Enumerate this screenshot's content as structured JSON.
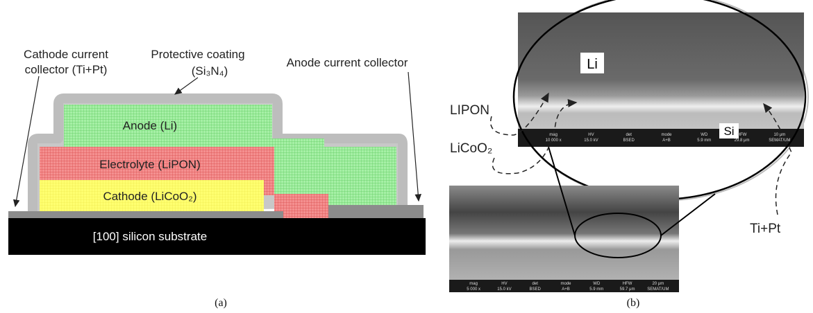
{
  "figure_a": {
    "cathode_collector": [
      "Cathode current",
      "collector (Ti+Pt)"
    ],
    "coating": [
      "Protective coating",
      "(Si₃N₄)"
    ],
    "anode_collector": "Anode current collector",
    "anode": "Anode (Li)",
    "electrolyte": "Electrolyte (LiPON)",
    "cathode": "Cathode (LiCoO₂)",
    "substrate": "[100] silicon substrate",
    "caption": "(a)"
  },
  "figure_b": {
    "li": "Li",
    "lipon": "LIPON",
    "licoo2": "LiCoO₂",
    "si": "Si",
    "tipt": "Ti+Pt",
    "top_bar": [
      [
        "mag",
        "HV",
        "det",
        "mode",
        "WD",
        "HFW",
        "10 μm"
      ],
      [
        "10 000 x",
        "15.0 kV",
        "BSED",
        "A+B",
        "5.9 mm",
        "29.8 μm",
        "SEMAT/UM"
      ]
    ],
    "bottom_bar": [
      [
        "mag",
        "HV",
        "det",
        "mode",
        "WD",
        "HFW",
        "20 μm"
      ],
      [
        "5 000 x",
        "15.0 kV",
        "BSED",
        "A+B",
        "5.9 mm",
        "59.7 μm",
        "SEMAT/UM"
      ]
    ],
    "caption": "(b)"
  }
}
